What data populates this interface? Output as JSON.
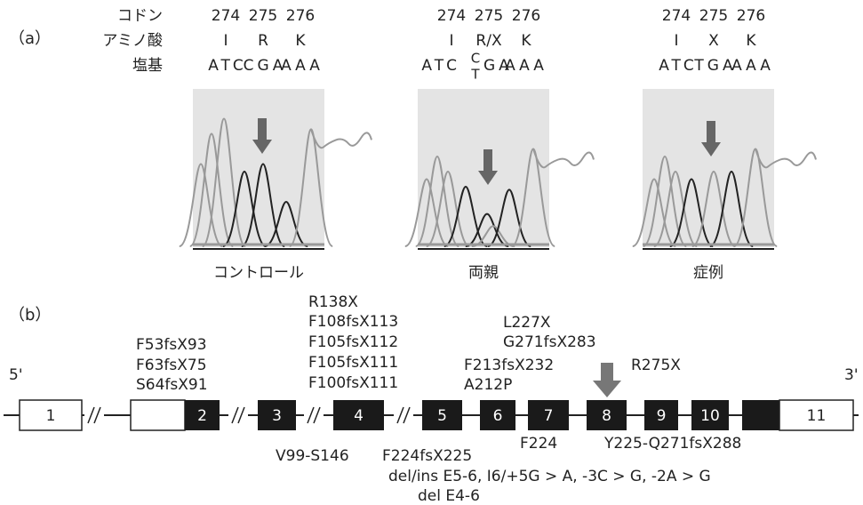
{
  "panel_a": {
    "label": "（a）",
    "row_labels": [
      "コドン",
      "アミノ酸",
      "塩基"
    ],
    "samples": [
      {
        "caption": "コントロール",
        "codons": [
          "274",
          "275",
          "276"
        ],
        "amino_acids": [
          "I",
          "R",
          "K"
        ],
        "bases": [
          "ATC",
          "CGA",
          "AAA"
        ]
      },
      {
        "caption": "両親",
        "codons": [
          "274",
          "275",
          "276"
        ],
        "amino_acids": [
          "I",
          "R/X",
          "K"
        ],
        "bases": [
          "ATC",
          "GA",
          "AAA"
        ],
        "het_upper": "C",
        "het_lower": "T"
      },
      {
        "caption": "症例",
        "codons": [
          "274",
          "275",
          "276"
        ],
        "amino_acids": [
          "I",
          "X",
          "K"
        ],
        "bases": [
          "ATC",
          "TGA",
          "AAA"
        ]
      }
    ]
  },
  "panel_b": {
    "label": "（b）",
    "five_prime": "5'",
    "three_prime": "3'",
    "exons": [
      "1",
      "2",
      "3",
      "4",
      "5",
      "6",
      "7",
      "8",
      "9",
      "10",
      "11"
    ],
    "above_exon2": [
      "F53fsX93",
      "F63fsX75",
      "S64fsX91"
    ],
    "above_exon4": [
      "R138X",
      "F108fsX113",
      "F105fsX112",
      "F105fsX111",
      "F100fsX111"
    ],
    "above_exon5": [
      "F213fsX232",
      "A212P"
    ],
    "above_exon7": [
      "L227X",
      "G271fsX283"
    ],
    "arrow_label": "R275X",
    "below": [
      "V99-S146",
      "F224fsX225",
      "F224",
      "Y225-Q271fsX288",
      "del/ins E5-6, I6/+5G > A, -3C > G, -2A > G",
      "del E4-6"
    ]
  }
}
